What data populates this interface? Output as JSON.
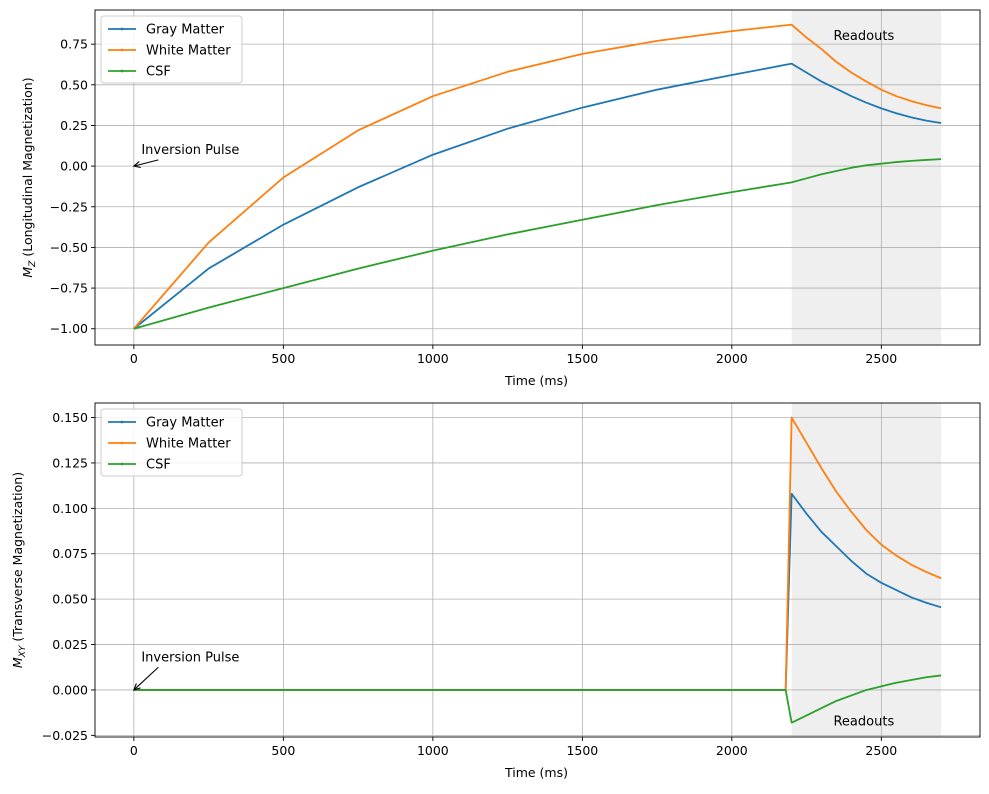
{
  "chart_data": [
    {
      "type": "line",
      "xlabel": "Time (ms)",
      "ylabel_prefix": "M",
      "ylabel_sub": "Z",
      "ylabel_suffix": " (Longitudinal Magnetization)",
      "xlim": [
        -130,
        2830
      ],
      "ylim": [
        -1.1,
        0.96
      ],
      "xticks": [
        0,
        500,
        1000,
        1500,
        2000,
        2500
      ],
      "yticks": [
        -1.0,
        -0.75,
        -0.5,
        -0.25,
        0.0,
        0.25,
        0.5,
        0.75
      ],
      "ytick_labels": [
        "−1.00",
        "−0.75",
        "−0.50",
        "−0.25",
        "0.00",
        "0.25",
        "0.50",
        "0.75"
      ],
      "xtick_labels": [
        "0",
        "500",
        "1000",
        "1500",
        "2000",
        "2500"
      ],
      "grid": true,
      "legend_position": "upper-left",
      "shaded_region": {
        "x0": 2200,
        "x1": 2700,
        "color": "#efefef"
      },
      "series": [
        {
          "name": "Gray Matter",
          "color": "#1f77b4",
          "x": [
            0,
            250,
            500,
            750,
            1000,
            1250,
            1500,
            1750,
            2000,
            2200,
            2250,
            2300,
            2350,
            2400,
            2450,
            2500,
            2550,
            2600,
            2650,
            2700
          ],
          "values": [
            -1.0,
            -0.63,
            -0.36,
            -0.13,
            0.07,
            0.23,
            0.36,
            0.47,
            0.56,
            0.63,
            0.575,
            0.52,
            0.475,
            0.43,
            0.39,
            0.355,
            0.325,
            0.3,
            0.28,
            0.265
          ]
        },
        {
          "name": "White Matter",
          "color": "#ff7f0e",
          "x": [
            0,
            250,
            500,
            750,
            1000,
            1250,
            1500,
            1750,
            2000,
            2200,
            2250,
            2300,
            2350,
            2400,
            2450,
            2500,
            2550,
            2600,
            2650,
            2700
          ],
          "values": [
            -1.0,
            -0.47,
            -0.07,
            0.22,
            0.43,
            0.58,
            0.69,
            0.77,
            0.83,
            0.87,
            0.79,
            0.72,
            0.64,
            0.575,
            0.52,
            0.47,
            0.43,
            0.4,
            0.375,
            0.355
          ]
        },
        {
          "name": "CSF",
          "color": "#2ca02c",
          "x": [
            0,
            250,
            500,
            750,
            1000,
            1250,
            1500,
            1750,
            2000,
            2200,
            2250,
            2300,
            2350,
            2400,
            2450,
            2500,
            2550,
            2600,
            2650,
            2700
          ],
          "values": [
            -1.0,
            -0.87,
            -0.75,
            -0.63,
            -0.52,
            -0.42,
            -0.33,
            -0.24,
            -0.16,
            -0.1,
            -0.075,
            -0.05,
            -0.03,
            -0.01,
            0.005,
            0.015,
            0.025,
            0.032,
            0.038,
            0.043
          ]
        }
      ],
      "annotations": [
        {
          "text": "Inversion Pulse",
          "point": [
            0,
            0.0
          ],
          "text_at": [
            25,
            0.1
          ]
        },
        {
          "text": "Readouts",
          "text_at": [
            2340,
            0.8
          ]
        }
      ]
    },
    {
      "type": "line",
      "xlabel": "Time (ms)",
      "ylabel_prefix": "M",
      "ylabel_sub": "XY",
      "ylabel_suffix": " (Transverse Magnetization)",
      "xlim": [
        -130,
        2830
      ],
      "ylim": [
        -0.0259,
        0.158
      ],
      "xticks": [
        0,
        500,
        1000,
        1500,
        2000,
        2500
      ],
      "yticks": [
        -0.025,
        0.0,
        0.025,
        0.05,
        0.075,
        0.1,
        0.125,
        0.15
      ],
      "ytick_labels": [
        "−0.025",
        "0.000",
        "0.025",
        "0.050",
        "0.075",
        "0.100",
        "0.125",
        "0.150"
      ],
      "xtick_labels": [
        "0",
        "500",
        "1000",
        "1500",
        "2000",
        "2500"
      ],
      "grid": true,
      "legend_position": "upper-left",
      "shaded_region": {
        "x0": 2200,
        "x1": 2700,
        "color": "#efefef"
      },
      "series": [
        {
          "name": "Gray Matter",
          "color": "#1f77b4",
          "x": [
            0,
            2180,
            2200,
            2250,
            2300,
            2350,
            2400,
            2450,
            2500,
            2550,
            2600,
            2650,
            2700
          ],
          "values": [
            0.0,
            0.0,
            0.108,
            0.097,
            0.087,
            0.079,
            0.071,
            0.064,
            0.059,
            0.055,
            0.051,
            0.048,
            0.0455
          ]
        },
        {
          "name": "White Matter",
          "color": "#ff7f0e",
          "x": [
            0,
            2180,
            2200,
            2250,
            2300,
            2350,
            2400,
            2450,
            2500,
            2550,
            2600,
            2650,
            2700
          ],
          "values": [
            0.0,
            0.0,
            0.15,
            0.136,
            0.122,
            0.109,
            0.098,
            0.088,
            0.08,
            0.074,
            0.069,
            0.065,
            0.0615
          ]
        },
        {
          "name": "CSF",
          "color": "#2ca02c",
          "x": [
            0,
            2180,
            2200,
            2250,
            2300,
            2350,
            2400,
            2450,
            2500,
            2550,
            2600,
            2650,
            2700
          ],
          "values": [
            0.0,
            0.0,
            -0.018,
            -0.014,
            -0.01,
            -0.006,
            -0.003,
            0.0,
            0.002,
            0.004,
            0.0055,
            0.007,
            0.008
          ]
        }
      ],
      "annotations": [
        {
          "text": "Inversion Pulse",
          "point": [
            0,
            0.0
          ],
          "text_at": [
            25,
            0.018
          ]
        },
        {
          "text": "Readouts",
          "text_at": [
            2340,
            -0.0175
          ]
        }
      ]
    }
  ]
}
